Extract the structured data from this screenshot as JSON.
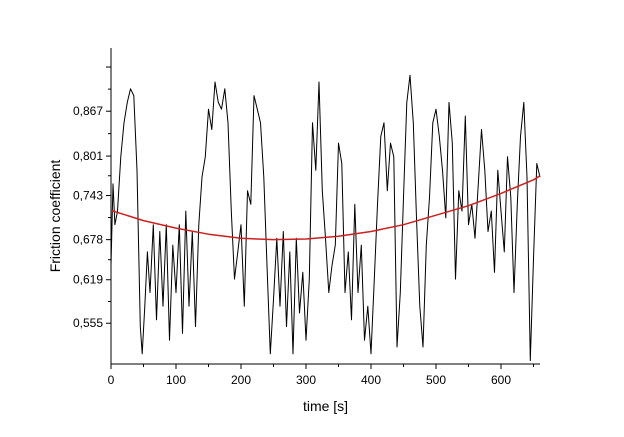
{
  "chart_data": {
    "type": "line",
    "title": "",
    "xlabel": "time [s]",
    "ylabel": "Friction coefficient",
    "xlim": [
      0,
      660
    ],
    "ylim": [
      0.495,
      0.96
    ],
    "x_ticks": [
      0,
      100,
      200,
      300,
      400,
      500,
      600
    ],
    "x_tick_labels": [
      "0",
      "100",
      "200",
      "300",
      "400",
      "500",
      "600"
    ],
    "y_ticks": [
      0.555,
      0.619,
      0.678,
      0.743,
      0.801,
      0.867
    ],
    "y_tick_labels": [
      "0,555",
      "0,619",
      "0,678",
      "0,743",
      "0,801",
      "0,867"
    ],
    "grid": false,
    "legend": "none",
    "series": [
      {
        "color": "#000000",
        "style": "raw friction signal",
        "x": [
          0,
          3,
          6,
          10,
          15,
          20,
          25,
          30,
          35,
          40,
          45,
          48,
          52,
          56,
          60,
          65,
          70,
          75,
          80,
          85,
          90,
          95,
          100,
          105,
          110,
          115,
          120,
          125,
          130,
          135,
          140,
          145,
          150,
          155,
          160,
          165,
          170,
          175,
          180,
          185,
          190,
          195,
          200,
          205,
          210,
          215,
          220,
          225,
          230,
          235,
          240,
          245,
          250,
          255,
          260,
          265,
          270,
          275,
          280,
          285,
          290,
          295,
          300,
          305,
          310,
          315,
          320,
          325,
          330,
          335,
          340,
          345,
          350,
          355,
          360,
          365,
          370,
          375,
          380,
          385,
          390,
          395,
          400,
          405,
          410,
          415,
          420,
          425,
          430,
          435,
          440,
          445,
          450,
          455,
          460,
          465,
          470,
          475,
          480,
          485,
          490,
          495,
          500,
          505,
          510,
          515,
          520,
          525,
          530,
          535,
          540,
          545,
          550,
          555,
          560,
          565,
          570,
          575,
          580,
          585,
          590,
          595,
          600,
          605,
          610,
          615,
          620,
          625,
          630,
          635,
          640,
          645,
          650,
          655,
          660
        ],
        "y": [
          0.64,
          0.76,
          0.7,
          0.72,
          0.8,
          0.85,
          0.88,
          0.9,
          0.89,
          0.78,
          0.55,
          0.51,
          0.58,
          0.66,
          0.6,
          0.7,
          0.56,
          0.69,
          0.58,
          0.7,
          0.53,
          0.67,
          0.6,
          0.7,
          0.54,
          0.72,
          0.58,
          0.69,
          0.55,
          0.7,
          0.77,
          0.8,
          0.87,
          0.84,
          0.91,
          0.88,
          0.87,
          0.9,
          0.85,
          0.72,
          0.62,
          0.66,
          0.7,
          0.58,
          0.75,
          0.73,
          0.89,
          0.87,
          0.85,
          0.77,
          0.64,
          0.51,
          0.59,
          0.68,
          0.58,
          0.69,
          0.55,
          0.66,
          0.51,
          0.68,
          0.57,
          0.63,
          0.53,
          0.62,
          0.85,
          0.78,
          0.91,
          0.75,
          0.68,
          0.6,
          0.64,
          0.67,
          0.82,
          0.79,
          0.6,
          0.66,
          0.56,
          0.73,
          0.6,
          0.67,
          0.53,
          0.58,
          0.51,
          0.62,
          0.73,
          0.83,
          0.85,
          0.75,
          0.82,
          0.8,
          0.52,
          0.6,
          0.74,
          0.88,
          0.92,
          0.85,
          0.71,
          0.58,
          0.52,
          0.67,
          0.74,
          0.85,
          0.87,
          0.83,
          0.78,
          0.71,
          0.88,
          0.82,
          0.62,
          0.75,
          0.72,
          0.86,
          0.7,
          0.73,
          0.68,
          0.76,
          0.84,
          0.78,
          0.69,
          0.72,
          0.63,
          0.78,
          0.72,
          0.66,
          0.8,
          0.74,
          0.6,
          0.73,
          0.83,
          0.88,
          0.77,
          0.5,
          0.65,
          0.79,
          0.77
        ]
      },
      {
        "color": "#cc2020",
        "style": "quadratic fit",
        "x": [
          0,
          50,
          100,
          150,
          200,
          250,
          300,
          350,
          400,
          450,
          500,
          550,
          600,
          650,
          660
        ],
        "y": [
          0.721,
          0.706,
          0.695,
          0.686,
          0.68,
          0.678,
          0.679,
          0.683,
          0.69,
          0.7,
          0.714,
          0.728,
          0.746,
          0.766,
          0.772
        ]
      }
    ]
  }
}
